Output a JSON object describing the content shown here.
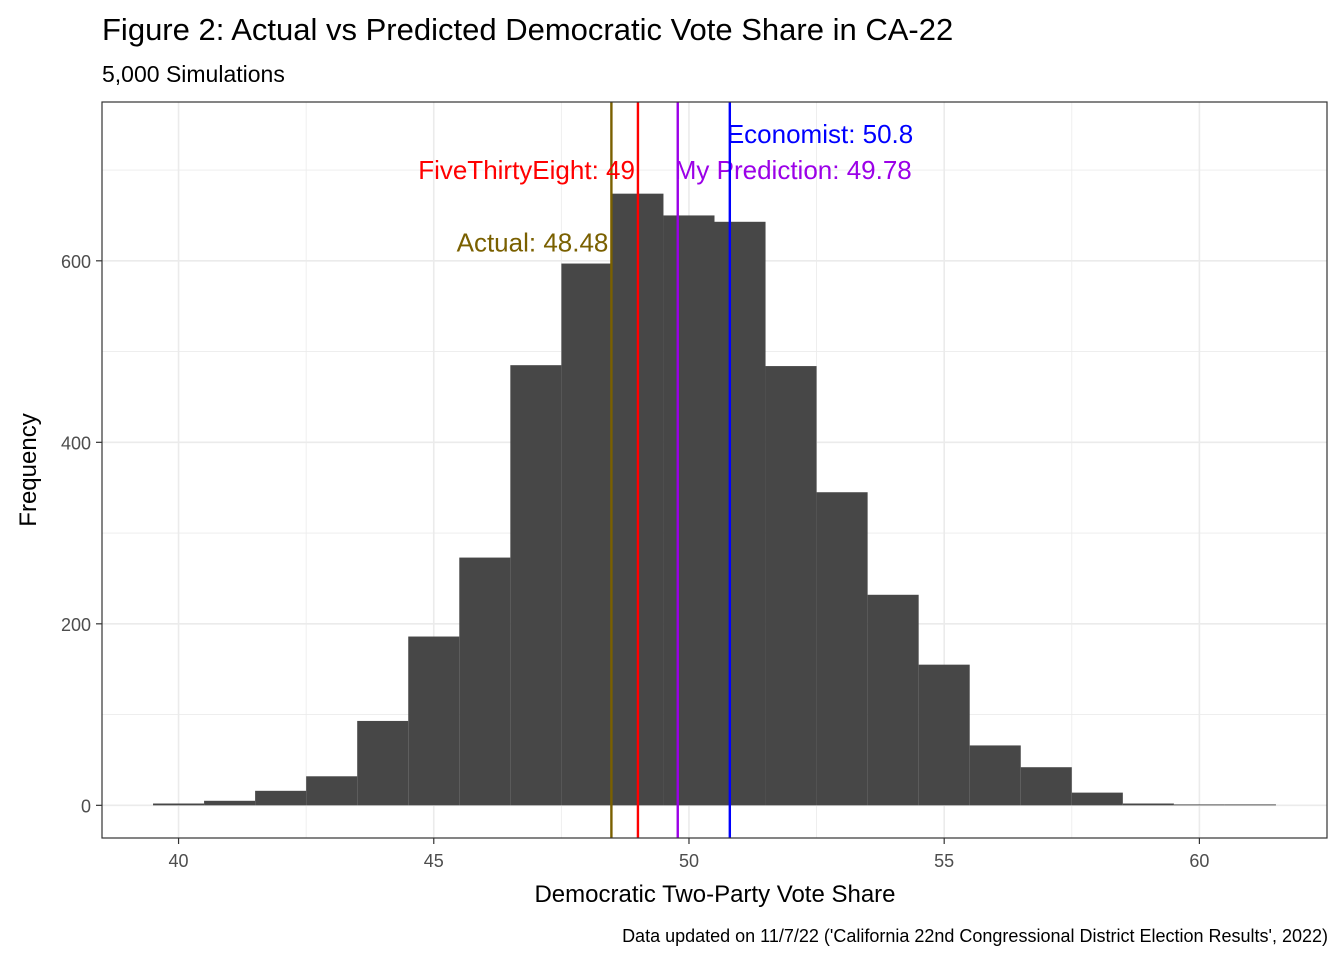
{
  "title": "Figure 2: Actual vs Predicted Democratic Vote Share in CA-22",
  "subtitle": "5,000 Simulations",
  "caption": "Data updated on 11/7/22 ('California 22nd Congressional District Election Results', 2022)",
  "chart_data": {
    "type": "bar",
    "histogram": true,
    "xlabel": "Democratic Two-Party Vote Share",
    "ylabel": "Frequency",
    "xlim": [
      38.5,
      62.5
    ],
    "ylim": [
      -36,
      775
    ],
    "x_ticks": [
      40,
      45,
      50,
      55,
      60
    ],
    "y_ticks": [
      0,
      200,
      400,
      600
    ],
    "grid": true,
    "bar_color": "#474747",
    "bins": [
      {
        "x": 40,
        "value": 2
      },
      {
        "x": 41,
        "value": 5
      },
      {
        "x": 42,
        "value": 16
      },
      {
        "x": 43,
        "value": 32
      },
      {
        "x": 44,
        "value": 93
      },
      {
        "x": 45,
        "value": 186
      },
      {
        "x": 46,
        "value": 273
      },
      {
        "x": 47,
        "value": 485
      },
      {
        "x": 48,
        "value": 597
      },
      {
        "x": 49,
        "value": 674
      },
      {
        "x": 50,
        "value": 650
      },
      {
        "x": 51,
        "value": 643
      },
      {
        "x": 52,
        "value": 484
      },
      {
        "x": 53,
        "value": 345
      },
      {
        "x": 54,
        "value": 232
      },
      {
        "x": 55,
        "value": 155
      },
      {
        "x": 56,
        "value": 66
      },
      {
        "x": 57,
        "value": 42
      },
      {
        "x": 58,
        "value": 14
      },
      {
        "x": 59,
        "value": 2
      },
      {
        "x": 60,
        "value": 1
      },
      {
        "x": 61,
        "value": 1
      }
    ],
    "bin_width": 1,
    "reference_lines": [
      {
        "label": "Actual: 48.48",
        "value": 48.48,
        "color": "#7a6000",
        "label_y": 620,
        "anchor": "end"
      },
      {
        "label": "FiveThirtyEight: 49",
        "value": 49,
        "color": "#ff0000",
        "label_y": 700,
        "anchor": "end"
      },
      {
        "label": "My Prediction: 49.78",
        "value": 49.78,
        "color": "#9b00e8",
        "label_y": 700,
        "anchor": "start"
      },
      {
        "label": "Economist: 50.8",
        "value": 50.8,
        "color": "#0000ff",
        "label_y": 740,
        "anchor": "start"
      }
    ]
  }
}
